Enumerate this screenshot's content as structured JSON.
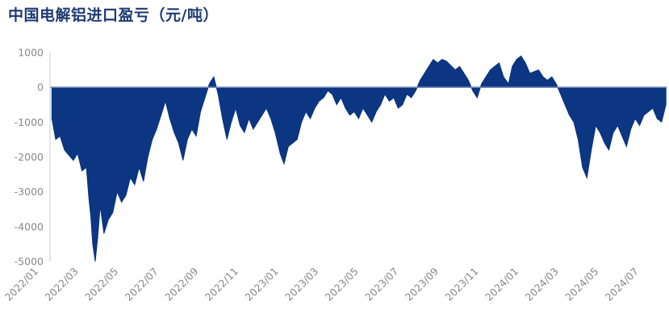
{
  "chart_data": {
    "type": "area",
    "title": "中国电解铝进口盈亏（元/吨）",
    "xlabel": "",
    "ylabel": "",
    "ylim": [
      -5000,
      1000
    ],
    "yticks": [
      1000,
      0,
      -1000,
      -2000,
      -3000,
      -4000,
      -5000
    ],
    "xticks": [
      "2022/01",
      "2022/03",
      "2022/05",
      "2022/07",
      "2022/09",
      "2022/11",
      "2023/01",
      "2023/03",
      "2023/05",
      "2023/07",
      "2023/09",
      "2023/11",
      "2024/01",
      "2024/03",
      "2024/05",
      "2024/07"
    ],
    "x_range": [
      "2022-01-01",
      "2024-09-10"
    ],
    "color": "#0c3582",
    "grid": false,
    "legend": "none",
    "points": [
      [
        "2022-01-04",
        -900
      ],
      [
        "2022-01-10",
        -1500
      ],
      [
        "2022-01-17",
        -1400
      ],
      [
        "2022-01-24",
        -1800
      ],
      [
        "2022-02-07",
        -2100
      ],
      [
        "2022-02-14",
        -1900
      ],
      [
        "2022-02-21",
        -2400
      ],
      [
        "2022-02-28",
        -2300
      ],
      [
        "2022-03-04",
        -3200
      ],
      [
        "2022-03-07",
        -3700
      ],
      [
        "2022-03-10",
        -4500
      ],
      [
        "2022-03-14",
        -5000
      ],
      [
        "2022-03-18",
        -4300
      ],
      [
        "2022-03-22",
        -3400
      ],
      [
        "2022-03-28",
        -4200
      ],
      [
        "2022-04-04",
        -3800
      ],
      [
        "2022-04-11",
        -3600
      ],
      [
        "2022-04-18",
        -3000
      ],
      [
        "2022-04-25",
        -3300
      ],
      [
        "2022-05-02",
        -3100
      ],
      [
        "2022-05-09",
        -2600
      ],
      [
        "2022-05-16",
        -2800
      ],
      [
        "2022-05-23",
        -2300
      ],
      [
        "2022-05-30",
        -2700
      ],
      [
        "2022-06-06",
        -2000
      ],
      [
        "2022-06-13",
        -1500
      ],
      [
        "2022-06-20",
        -1200
      ],
      [
        "2022-06-27",
        -800
      ],
      [
        "2022-07-04",
        -400
      ],
      [
        "2022-07-11",
        -900
      ],
      [
        "2022-07-18",
        -1300
      ],
      [
        "2022-07-25",
        -1600
      ],
      [
        "2022-08-01",
        -2100
      ],
      [
        "2022-08-08",
        -1500
      ],
      [
        "2022-08-15",
        -1200
      ],
      [
        "2022-08-22",
        -1400
      ],
      [
        "2022-08-29",
        -700
      ],
      [
        "2022-09-05",
        -300
      ],
      [
        "2022-09-12",
        100
      ],
      [
        "2022-09-19",
        300
      ],
      [
        "2022-09-26",
        -200
      ],
      [
        "2022-10-03",
        -900
      ],
      [
        "2022-10-10",
        -1500
      ],
      [
        "2022-10-17",
        -1000
      ],
      [
        "2022-10-24",
        -600
      ],
      [
        "2022-10-31",
        -1100
      ],
      [
        "2022-11-07",
        -1300
      ],
      [
        "2022-11-14",
        -900
      ],
      [
        "2022-11-21",
        -1200
      ],
      [
        "2022-11-28",
        -1000
      ],
      [
        "2022-12-05",
        -800
      ],
      [
        "2022-12-12",
        -600
      ],
      [
        "2022-12-19",
        -900
      ],
      [
        "2022-12-26",
        -1300
      ],
      [
        "2023-01-03",
        -1900
      ],
      [
        "2023-01-09",
        -2200
      ],
      [
        "2023-01-16",
        -1700
      ],
      [
        "2023-01-30",
        -1500
      ],
      [
        "2023-02-06",
        -1000
      ],
      [
        "2023-02-13",
        -700
      ],
      [
        "2023-02-20",
        -900
      ],
      [
        "2023-02-27",
        -600
      ],
      [
        "2023-03-06",
        -400
      ],
      [
        "2023-03-13",
        -300
      ],
      [
        "2023-03-20",
        -100
      ],
      [
        "2023-03-27",
        -200
      ],
      [
        "2023-04-03",
        -500
      ],
      [
        "2023-04-10",
        -300
      ],
      [
        "2023-04-17",
        -600
      ],
      [
        "2023-04-24",
        -800
      ],
      [
        "2023-05-01",
        -700
      ],
      [
        "2023-05-08",
        -900
      ],
      [
        "2023-05-15",
        -600
      ],
      [
        "2023-05-22",
        -800
      ],
      [
        "2023-05-29",
        -1000
      ],
      [
        "2023-06-05",
        -700
      ],
      [
        "2023-06-12",
        -500
      ],
      [
        "2023-06-19",
        -200
      ],
      [
        "2023-06-26",
        -400
      ],
      [
        "2023-07-03",
        -300
      ],
      [
        "2023-07-10",
        -600
      ],
      [
        "2023-07-17",
        -500
      ],
      [
        "2023-07-24",
        -200
      ],
      [
        "2023-07-31",
        -300
      ],
      [
        "2023-08-07",
        -100
      ],
      [
        "2023-08-14",
        200
      ],
      [
        "2023-08-21",
        400
      ],
      [
        "2023-08-28",
        600
      ],
      [
        "2023-09-04",
        800
      ],
      [
        "2023-09-11",
        700
      ],
      [
        "2023-09-18",
        800
      ],
      [
        "2023-09-25",
        750
      ],
      [
        "2023-10-09",
        500
      ],
      [
        "2023-10-16",
        600
      ],
      [
        "2023-10-23",
        400
      ],
      [
        "2023-10-30",
        200
      ],
      [
        "2023-11-06",
        -100
      ],
      [
        "2023-11-13",
        -300
      ],
      [
        "2023-11-20",
        100
      ],
      [
        "2023-11-27",
        300
      ],
      [
        "2023-12-04",
        500
      ],
      [
        "2023-12-11",
        600
      ],
      [
        "2023-12-18",
        700
      ],
      [
        "2023-12-25",
        300
      ],
      [
        "2024-01-02",
        100
      ],
      [
        "2024-01-08",
        600
      ],
      [
        "2024-01-15",
        800
      ],
      [
        "2024-01-22",
        900
      ],
      [
        "2024-01-29",
        700
      ],
      [
        "2024-02-05",
        400
      ],
      [
        "2024-02-19",
        500
      ],
      [
        "2024-02-26",
        300
      ],
      [
        "2024-03-04",
        200
      ],
      [
        "2024-03-11",
        300
      ],
      [
        "2024-03-18",
        100
      ],
      [
        "2024-03-25",
        -200
      ],
      [
        "2024-04-01",
        -500
      ],
      [
        "2024-04-08",
        -800
      ],
      [
        "2024-04-15",
        -1000
      ],
      [
        "2024-04-22",
        -1500
      ],
      [
        "2024-04-29",
        -2300
      ],
      [
        "2024-05-06",
        -2600
      ],
      [
        "2024-05-13",
        -1800
      ],
      [
        "2024-05-20",
        -1100
      ],
      [
        "2024-05-27",
        -1300
      ],
      [
        "2024-06-03",
        -1600
      ],
      [
        "2024-06-10",
        -1800
      ],
      [
        "2024-06-17",
        -1300
      ],
      [
        "2024-06-24",
        -1100
      ],
      [
        "2024-07-01",
        -1400
      ],
      [
        "2024-07-08",
        -1700
      ],
      [
        "2024-07-15",
        -1200
      ],
      [
        "2024-07-22",
        -900
      ],
      [
        "2024-07-29",
        -1100
      ],
      [
        "2024-08-05",
        -800
      ],
      [
        "2024-08-12",
        -700
      ],
      [
        "2024-08-19",
        -600
      ],
      [
        "2024-08-26",
        -900
      ],
      [
        "2024-09-02",
        -1000
      ],
      [
        "2024-09-09",
        -500
      ]
    ]
  }
}
